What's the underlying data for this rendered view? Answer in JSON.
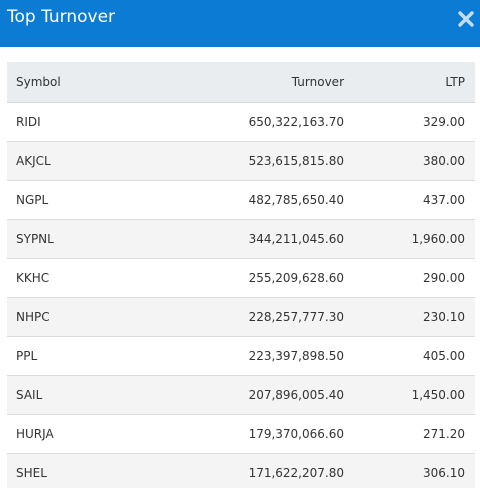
{
  "modal": {
    "title": "Top Turnover",
    "close_icon": "close-x-icon",
    "header_color": "#0b7bd4"
  },
  "table": {
    "columns": [
      "Symbol",
      "Turnover",
      "LTP"
    ],
    "rows": [
      {
        "symbol": "RIDI",
        "turnover": "650,322,163.70",
        "ltp": "329.00"
      },
      {
        "symbol": "AKJCL",
        "turnover": "523,615,815.80",
        "ltp": "380.00"
      },
      {
        "symbol": "NGPL",
        "turnover": "482,785,650.40",
        "ltp": "437.00"
      },
      {
        "symbol": "SYPNL",
        "turnover": "344,211,045.60",
        "ltp": "1,960.00"
      },
      {
        "symbol": "KKHC",
        "turnover": "255,209,628.60",
        "ltp": "290.00"
      },
      {
        "symbol": "NHPC",
        "turnover": "228,257,777.30",
        "ltp": "230.10"
      },
      {
        "symbol": "PPL",
        "turnover": "223,397,898.50",
        "ltp": "405.00"
      },
      {
        "symbol": "SAIL",
        "turnover": "207,896,005.40",
        "ltp": "1,450.00"
      },
      {
        "symbol": "HURJA",
        "turnover": "179,370,066.60",
        "ltp": "271.20"
      },
      {
        "symbol": "SHEL",
        "turnover": "171,622,207.80",
        "ltp": "306.10"
      }
    ]
  }
}
